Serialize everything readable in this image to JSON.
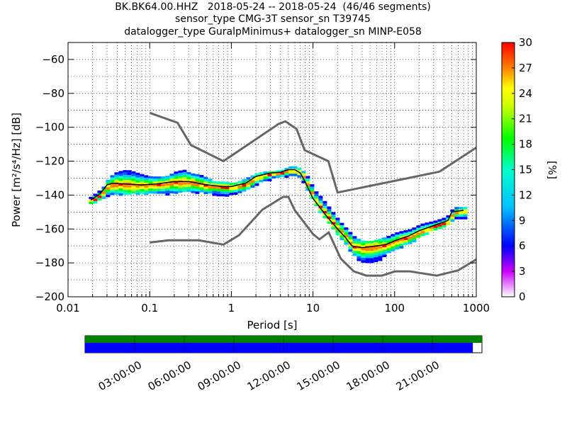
{
  "title_lines": [
    "BK.BK64.00.HHZ   2018-05-24 -- 2018-05-24  (46/46 segments)",
    "sensor_type CMG-3T sensor_sn T39745",
    "datalogger_type GuralpMinimus+ datalogger_sn MINP-E058"
  ],
  "chart_data": {
    "type": "heatmap",
    "xlabel": "Period [s]",
    "ylabel": "Power [m²/s⁴/Hz] [dB]",
    "xscale": "log",
    "xlim": [
      0.01,
      1000
    ],
    "ylim": [
      -200,
      -50
    ],
    "xticks": [
      {
        "value": 0.01,
        "label": "0.01"
      },
      {
        "value": 0.1,
        "label": "0.1"
      },
      {
        "value": 1,
        "label": "1"
      },
      {
        "value": 10,
        "label": "10"
      },
      {
        "value": 100,
        "label": "100"
      },
      {
        "value": 1000,
        "label": "1000"
      }
    ],
    "yticks": [
      {
        "value": -60,
        "label": "−60"
      },
      {
        "value": -80,
        "label": "−80"
      },
      {
        "value": -100,
        "label": "−100"
      },
      {
        "value": -120,
        "label": "−120"
      },
      {
        "value": -140,
        "label": "−140"
      },
      {
        "value": -160,
        "label": "−160"
      },
      {
        "value": -180,
        "label": "−180"
      },
      {
        "value": -200,
        "label": "−200"
      }
    ],
    "grid": true,
    "colorbar": {
      "label": "[%]",
      "min": 0,
      "max": 30,
      "ticks": [
        "0",
        "3",
        "6",
        "9",
        "12",
        "15",
        "18",
        "21",
        "24",
        "27",
        "30"
      ]
    },
    "noise_models": [
      {
        "name": "high",
        "points": [
          [
            0.1,
            -91.5
          ],
          [
            0.22,
            -97.4
          ],
          [
            0.32,
            -110.5
          ],
          [
            0.8,
            -120
          ],
          [
            3.8,
            -98
          ],
          [
            4.6,
            -96.5
          ],
          [
            6.3,
            -101
          ],
          [
            7.9,
            -113.5
          ],
          [
            15.4,
            -120
          ],
          [
            20,
            -138.5
          ],
          [
            354,
            -126.2
          ],
          [
            1000,
            -112
          ]
        ]
      },
      {
        "name": "low",
        "points": [
          [
            0.1,
            -168
          ],
          [
            0.17,
            -166.7
          ],
          [
            0.4,
            -166.7
          ],
          [
            0.8,
            -169.2
          ],
          [
            1.24,
            -163.7
          ],
          [
            2.4,
            -148.6
          ],
          [
            4.3,
            -141.1
          ],
          [
            5,
            -141.1
          ],
          [
            6,
            -149
          ],
          [
            10,
            -163
          ],
          [
            12,
            -166.1
          ],
          [
            15.6,
            -162
          ],
          [
            21.9,
            -177.5
          ],
          [
            31.6,
            -185
          ],
          [
            45,
            -187.5
          ],
          [
            70,
            -187.5
          ],
          [
            101,
            -185
          ],
          [
            154,
            -185
          ],
          [
            328,
            -187.5
          ],
          [
            600,
            -184.4
          ],
          [
            1000,
            -178
          ]
        ]
      }
    ],
    "mode_curve": {
      "points": [
        [
          0.019,
          -143
        ],
        [
          0.025,
          -139
        ],
        [
          0.03,
          -134
        ],
        [
          0.035,
          -133
        ],
        [
          0.05,
          -133.5
        ],
        [
          0.08,
          -134
        ],
        [
          0.12,
          -133.5
        ],
        [
          0.2,
          -132
        ],
        [
          0.3,
          -132
        ],
        [
          0.5,
          -134
        ],
        [
          0.8,
          -135
        ],
        [
          1,
          -135
        ],
        [
          1.5,
          -133
        ],
        [
          2,
          -129
        ],
        [
          3,
          -127
        ],
        [
          4,
          -126.5
        ],
        [
          5,
          -125
        ],
        [
          6,
          -125
        ],
        [
          7,
          -127
        ],
        [
          8,
          -132
        ],
        [
          10,
          -142
        ],
        [
          15,
          -153
        ],
        [
          20,
          -160
        ],
        [
          25,
          -165
        ],
        [
          30,
          -170
        ],
        [
          40,
          -171
        ],
        [
          60,
          -170
        ],
        [
          80,
          -169
        ],
        [
          100,
          -167
        ],
        [
          150,
          -164
        ],
        [
          200,
          -161
        ],
        [
          300,
          -158
        ],
        [
          450,
          -155
        ],
        [
          500,
          -150
        ],
        [
          700,
          -149
        ]
      ]
    },
    "psd_spread": [
      {
        "x": 0.018,
        "lo": -145,
        "hi": -141
      },
      {
        "x": 0.025,
        "lo": -142,
        "hi": -136
      },
      {
        "x": 0.03,
        "lo": -140,
        "hi": -130
      },
      {
        "x": 0.035,
        "lo": -139,
        "hi": -127
      },
      {
        "x": 0.04,
        "lo": -139,
        "hi": -126
      },
      {
        "x": 0.05,
        "lo": -139,
        "hi": -125
      },
      {
        "x": 0.06,
        "lo": -139,
        "hi": -126
      },
      {
        "x": 0.08,
        "lo": -139,
        "hi": -128
      },
      {
        "x": 0.1,
        "lo": -139,
        "hi": -129
      },
      {
        "x": 0.15,
        "lo": -139,
        "hi": -129
      },
      {
        "x": 0.2,
        "lo": -138,
        "hi": -126
      },
      {
        "x": 0.25,
        "lo": -138,
        "hi": -125
      },
      {
        "x": 0.3,
        "lo": -138,
        "hi": -127
      },
      {
        "x": 0.4,
        "lo": -138,
        "hi": -128
      },
      {
        "x": 0.5,
        "lo": -139,
        "hi": -130
      },
      {
        "x": 0.6,
        "lo": -139,
        "hi": -132
      },
      {
        "x": 0.8,
        "lo": -140,
        "hi": -132
      },
      {
        "x": 1,
        "lo": -140,
        "hi": -133
      },
      {
        "x": 1.3,
        "lo": -138,
        "hi": -131
      },
      {
        "x": 1.6,
        "lo": -136,
        "hi": -129
      },
      {
        "x": 2,
        "lo": -133,
        "hi": -127
      },
      {
        "x": 2.5,
        "lo": -131,
        "hi": -126
      },
      {
        "x": 3,
        "lo": -130,
        "hi": -126
      },
      {
        "x": 4,
        "lo": -129,
        "hi": -125
      },
      {
        "x": 5,
        "lo": -128,
        "hi": -123
      },
      {
        "x": 6,
        "lo": -128,
        "hi": -123
      },
      {
        "x": 7,
        "lo": -131,
        "hi": -125
      },
      {
        "x": 8,
        "lo": -136,
        "hi": -128
      },
      {
        "x": 10,
        "lo": -145,
        "hi": -137
      },
      {
        "x": 12,
        "lo": -150,
        "hi": -141
      },
      {
        "x": 15,
        "lo": -157,
        "hi": -147
      },
      {
        "x": 18,
        "lo": -162,
        "hi": -152
      },
      {
        "x": 20,
        "lo": -165,
        "hi": -155
      },
      {
        "x": 25,
        "lo": -170,
        "hi": -160
      },
      {
        "x": 30,
        "lo": -175,
        "hi": -164
      },
      {
        "x": 35,
        "lo": -178,
        "hi": -166
      },
      {
        "x": 40,
        "lo": -180,
        "hi": -167
      },
      {
        "x": 50,
        "lo": -180,
        "hi": -167
      },
      {
        "x": 60,
        "lo": -178,
        "hi": -166
      },
      {
        "x": 70,
        "lo": -176,
        "hi": -165
      },
      {
        "x": 80,
        "lo": -174,
        "hi": -164
      },
      {
        "x": 100,
        "lo": -172,
        "hi": -162
      },
      {
        "x": 120,
        "lo": -170,
        "hi": -161
      },
      {
        "x": 150,
        "lo": -168,
        "hi": -160
      },
      {
        "x": 200,
        "lo": -164,
        "hi": -157
      },
      {
        "x": 300,
        "lo": -160,
        "hi": -155
      },
      {
        "x": 400,
        "lo": -158,
        "hi": -153
      },
      {
        "x": 450,
        "lo": -157,
        "hi": -151
      },
      {
        "x": 500,
        "lo": -153,
        "hi": -147
      },
      {
        "x": 600,
        "lo": -153,
        "hi": -147
      },
      {
        "x": 700,
        "lo": -153,
        "hi": -147
      }
    ]
  },
  "coverage": {
    "time_labels": [
      "03:00:00",
      "06:00:00",
      "09:00:00",
      "12:00:00",
      "15:00:00",
      "18:00:00",
      "21:00:00"
    ],
    "data_fraction": 1.0,
    "processed_fraction": 0.977,
    "data_color": "#008000",
    "processed_color": "#0000ff"
  }
}
